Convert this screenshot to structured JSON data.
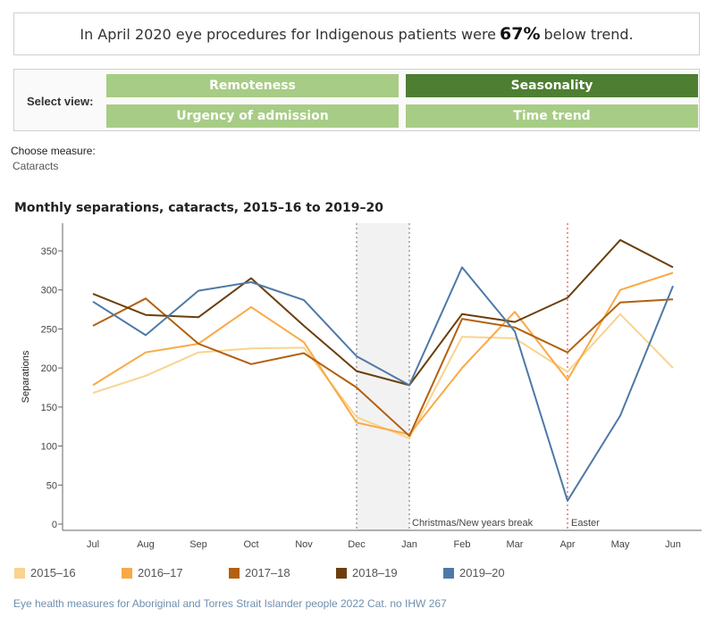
{
  "banner": {
    "before": "In April 2020 eye procedures  for Indigenous patients were",
    "percent": "67%",
    "after": "below trend."
  },
  "view_selector": {
    "label": "Select view:",
    "buttons": [
      {
        "label": "Remoteness",
        "active": false
      },
      {
        "label": "Seasonality",
        "active": true
      },
      {
        "label": "Urgency of admission",
        "active": false
      },
      {
        "label": "Time trend",
        "active": false
      }
    ]
  },
  "measure": {
    "label": "Choose measure:",
    "value": "Cataracts"
  },
  "chart_data": {
    "type": "line",
    "title": "Monthly separations, cataracts, 2015–16 to 2019–20",
    "xlabel": "",
    "ylabel": "Separations",
    "categories": [
      "Jul",
      "Aug",
      "Sep",
      "Oct",
      "Nov",
      "Dec",
      "Jan",
      "Feb",
      "Mar",
      "Apr",
      "May",
      "Jun"
    ],
    "ylim": [
      0,
      370
    ],
    "yticks": [
      0,
      50,
      100,
      150,
      200,
      250,
      300,
      350
    ],
    "grid": false,
    "legend_position": "bottom",
    "series": [
      {
        "name": "2015–16",
        "color": "#f9d38f",
        "values": [
          168,
          190,
          220,
          225,
          226,
          137,
          110,
          240,
          238,
          195,
          269,
          200
        ]
      },
      {
        "name": "2016–17",
        "color": "#f9a945",
        "values": [
          178,
          220,
          231,
          278,
          233,
          130,
          115,
          200,
          272,
          185,
          300,
          322
        ]
      },
      {
        "name": "2017–18",
        "color": "#b3600f",
        "values": [
          254,
          289,
          231,
          205,
          219,
          175,
          113,
          263,
          252,
          220,
          284,
          288
        ]
      },
      {
        "name": "2018–19",
        "color": "#6b3f0d",
        "values": [
          295,
          268,
          265,
          315,
          254,
          196,
          178,
          269,
          259,
          290,
          364,
          329
        ]
      },
      {
        "name": "2019–20",
        "color": "#4e79a7",
        "values": [
          285,
          242,
          299,
          310,
          287,
          215,
          178,
          329,
          247,
          30,
          139,
          305
        ]
      }
    ],
    "annotations": [
      {
        "type": "shaded_band",
        "from": "Dec",
        "to": "Jan",
        "label": "Christmas/New years break",
        "line_color": "#888888"
      },
      {
        "type": "reference_line",
        "at": "Apr",
        "label": "Easter",
        "line_color": "#e05050"
      }
    ]
  },
  "footer": "Eye health measures for Aboriginal and Torres Strait Islander people 2022 Cat. no IHW 267"
}
